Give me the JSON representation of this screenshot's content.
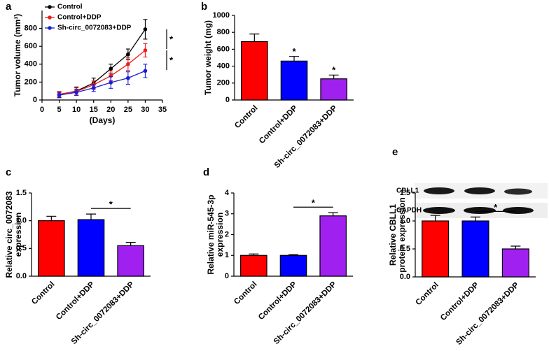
{
  "chart_data": [
    {
      "type": "line",
      "panel": "a",
      "y_label": [
        "Tumor volume (mm³)"
      ],
      "x_label": "(Days)",
      "x": [
        5,
        10,
        15,
        20,
        25,
        30
      ],
      "series": [
        {
          "name": "Control",
          "color": "#000000",
          "values": [
            60,
            100,
            190,
            350,
            510,
            790
          ],
          "errors": [
            30,
            45,
            55,
            50,
            60,
            110
          ]
        },
        {
          "name": "Control+DDP",
          "color": "#ee1c1c",
          "values": [
            65,
            95,
            170,
            270,
            400,
            555
          ],
          "errors": [
            30,
            40,
            50,
            55,
            70,
            75
          ]
        },
        {
          "name": "Sh-circ_0072083+DDP",
          "color": "#1c1cd8",
          "values": [
            55,
            85,
            135,
            195,
            245,
            325
          ],
          "errors": [
            30,
            35,
            40,
            65,
            70,
            75
          ]
        }
      ],
      "xlim": [
        0,
        35
      ],
      "xticks": [
        0,
        5,
        10,
        15,
        20,
        25,
        30,
        35
      ],
      "ylim": [
        0,
        1000
      ],
      "yticks": [
        0,
        200,
        400,
        600,
        800
      ],
      "annotations": [
        "*",
        "*"
      ]
    },
    {
      "type": "bar",
      "panel": "b",
      "y_label": [
        "Tumor weight (mg)"
      ],
      "categories": [
        "Control",
        "Control+DDP",
        "Sh-circ_0072083+DDP"
      ],
      "colors": [
        "#ff0000",
        "#0000ff",
        "#a020f0"
      ],
      "values": [
        690,
        460,
        250
      ],
      "errors": [
        90,
        55,
        45
      ],
      "ylim": [
        0,
        1000
      ],
      "yticks": [
        0,
        200,
        400,
        600,
        800,
        1000
      ],
      "annotations": [
        "*",
        "*"
      ]
    },
    {
      "type": "bar",
      "panel": "c",
      "y_label": [
        "Relative circ_0072083",
        "expression"
      ],
      "categories": [
        "Control",
        "Control+DDP",
        "Sh-circ_0072083+DDP"
      ],
      "colors": [
        "#ff0000",
        "#0000ff",
        "#a020f0"
      ],
      "values": [
        1.0,
        1.02,
        0.55
      ],
      "errors": [
        0.08,
        0.1,
        0.06
      ],
      "ylim": [
        0,
        1.5
      ],
      "yticks": [
        {
          "value": 0,
          "label": "0.0"
        },
        {
          "value": 0.5,
          "label": "0.5"
        },
        {
          "value": 1,
          "label": "1.0"
        },
        {
          "value": 1.5,
          "label": "1.5"
        }
      ],
      "annotations": [
        "*"
      ]
    },
    {
      "type": "bar",
      "panel": "d",
      "y_label": [
        "Relative miR-545-3p",
        "expression"
      ],
      "categories": [
        "Control",
        "Control+DDP",
        "Sh-circ_0072083+DDP"
      ],
      "colors": [
        "#ff0000",
        "#0000ff",
        "#a020f0"
      ],
      "values": [
        1.0,
        1.0,
        2.9
      ],
      "errors": [
        0.07,
        0.04,
        0.15
      ],
      "ylim": [
        0,
        4
      ],
      "yticks": [
        0,
        1,
        2,
        3,
        4
      ],
      "annotations": [
        "*"
      ]
    },
    {
      "type": "bar",
      "panel": "e",
      "y_label": [
        "Relative CBLL1",
        "protein expression"
      ],
      "blot_labels": [
        "CBLL1",
        "GAPDH"
      ],
      "categories": [
        "Control",
        "Control+DDP",
        "Sh-circ_0072083+DDP"
      ],
      "colors": [
        "#ff0000",
        "#0000ff",
        "#a020f0"
      ],
      "values": [
        1.0,
        1.0,
        0.5
      ],
      "errors": [
        0.1,
        0.07,
        0.05
      ],
      "ylim": [
        0,
        1.5
      ],
      "yticks": [
        {
          "value": 0,
          "label": "0.0"
        },
        {
          "value": 0.5,
          "label": "0.5"
        },
        {
          "value": 1,
          "label": "1.0"
        },
        {
          "value": 1.5,
          "label": "1.5"
        }
      ],
      "annotations": [
        "*"
      ]
    }
  ]
}
